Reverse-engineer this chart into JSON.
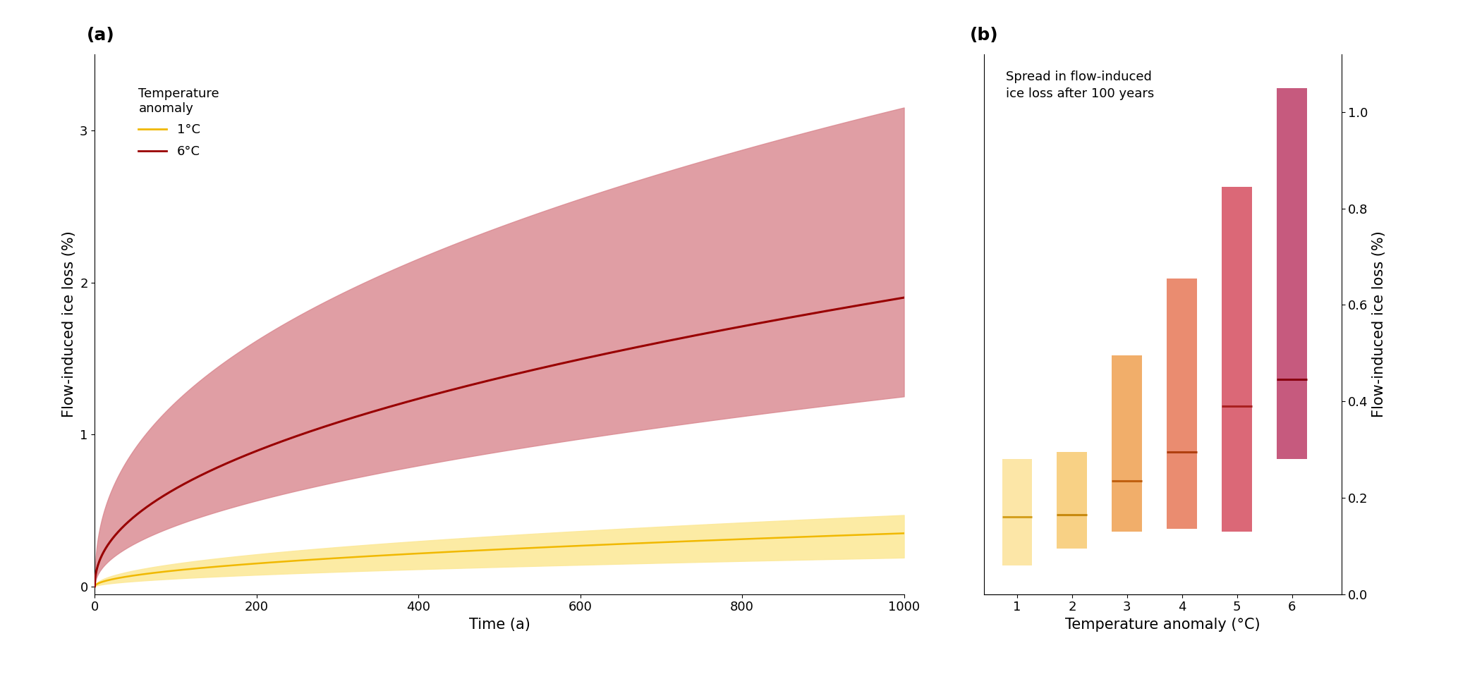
{
  "panel_a": {
    "title": "(a)",
    "xlabel": "Time (a)",
    "ylabel": "Flow-induced ice loss (%)",
    "xlim": [
      0,
      1000
    ],
    "ylim": [
      -0.05,
      3.5
    ],
    "yticks": [
      0,
      1,
      2,
      3
    ],
    "xticks": [
      0,
      200,
      400,
      600,
      800,
      1000
    ],
    "yellow_line_color": "#f0b800",
    "yellow_fill_color": "#fce99a",
    "red_line_color": "#990000",
    "red_fill_color": "#d9868e",
    "legend_title": "Temperature\nanomaly",
    "legend_items": [
      "1°C",
      "6°C"
    ],
    "yellow_mean_end": 0.35,
    "yellow_upper_end": 0.47,
    "yellow_lower_end": 0.19,
    "red_mean_end": 1.9,
    "red_upper_end": 3.15,
    "red_lower_end": 1.25,
    "yellow_power": 0.52,
    "red_power": 0.47
  },
  "panel_b": {
    "title": "(b)",
    "xlabel": "Temperature anomaly (°C)",
    "ylabel": "Flow-induced ice loss (%)",
    "annotation": "Spread in flow-induced\nice loss after 100 years",
    "xlim": [
      0.4,
      6.9
    ],
    "ylim": [
      0.0,
      1.12
    ],
    "yticks": [
      0.0,
      0.2,
      0.4,
      0.6,
      0.8,
      1.0
    ],
    "xticks": [
      1,
      2,
      3,
      4,
      5,
      6
    ],
    "bar_width": 0.55,
    "bars": [
      {
        "temp": 1,
        "median": 0.16,
        "low": 0.06,
        "high": 0.28,
        "color": "#fce49e",
        "line_color": "#d4a020"
      },
      {
        "temp": 2,
        "median": 0.165,
        "low": 0.095,
        "high": 0.295,
        "color": "#f8cc78",
        "line_color": "#c88a10"
      },
      {
        "temp": 3,
        "median": 0.235,
        "low": 0.13,
        "high": 0.495,
        "color": "#f0a55a",
        "line_color": "#c06010"
      },
      {
        "temp": 4,
        "median": 0.295,
        "low": 0.135,
        "high": 0.655,
        "color": "#e88060",
        "line_color": "#b04010"
      },
      {
        "temp": 5,
        "median": 0.39,
        "low": 0.13,
        "high": 0.845,
        "color": "#d85868",
        "line_color": "#aa2020"
      },
      {
        "temp": 6,
        "median": 0.445,
        "low": 0.28,
        "high": 1.05,
        "color": "#c04870",
        "line_color": "#880010"
      }
    ]
  }
}
